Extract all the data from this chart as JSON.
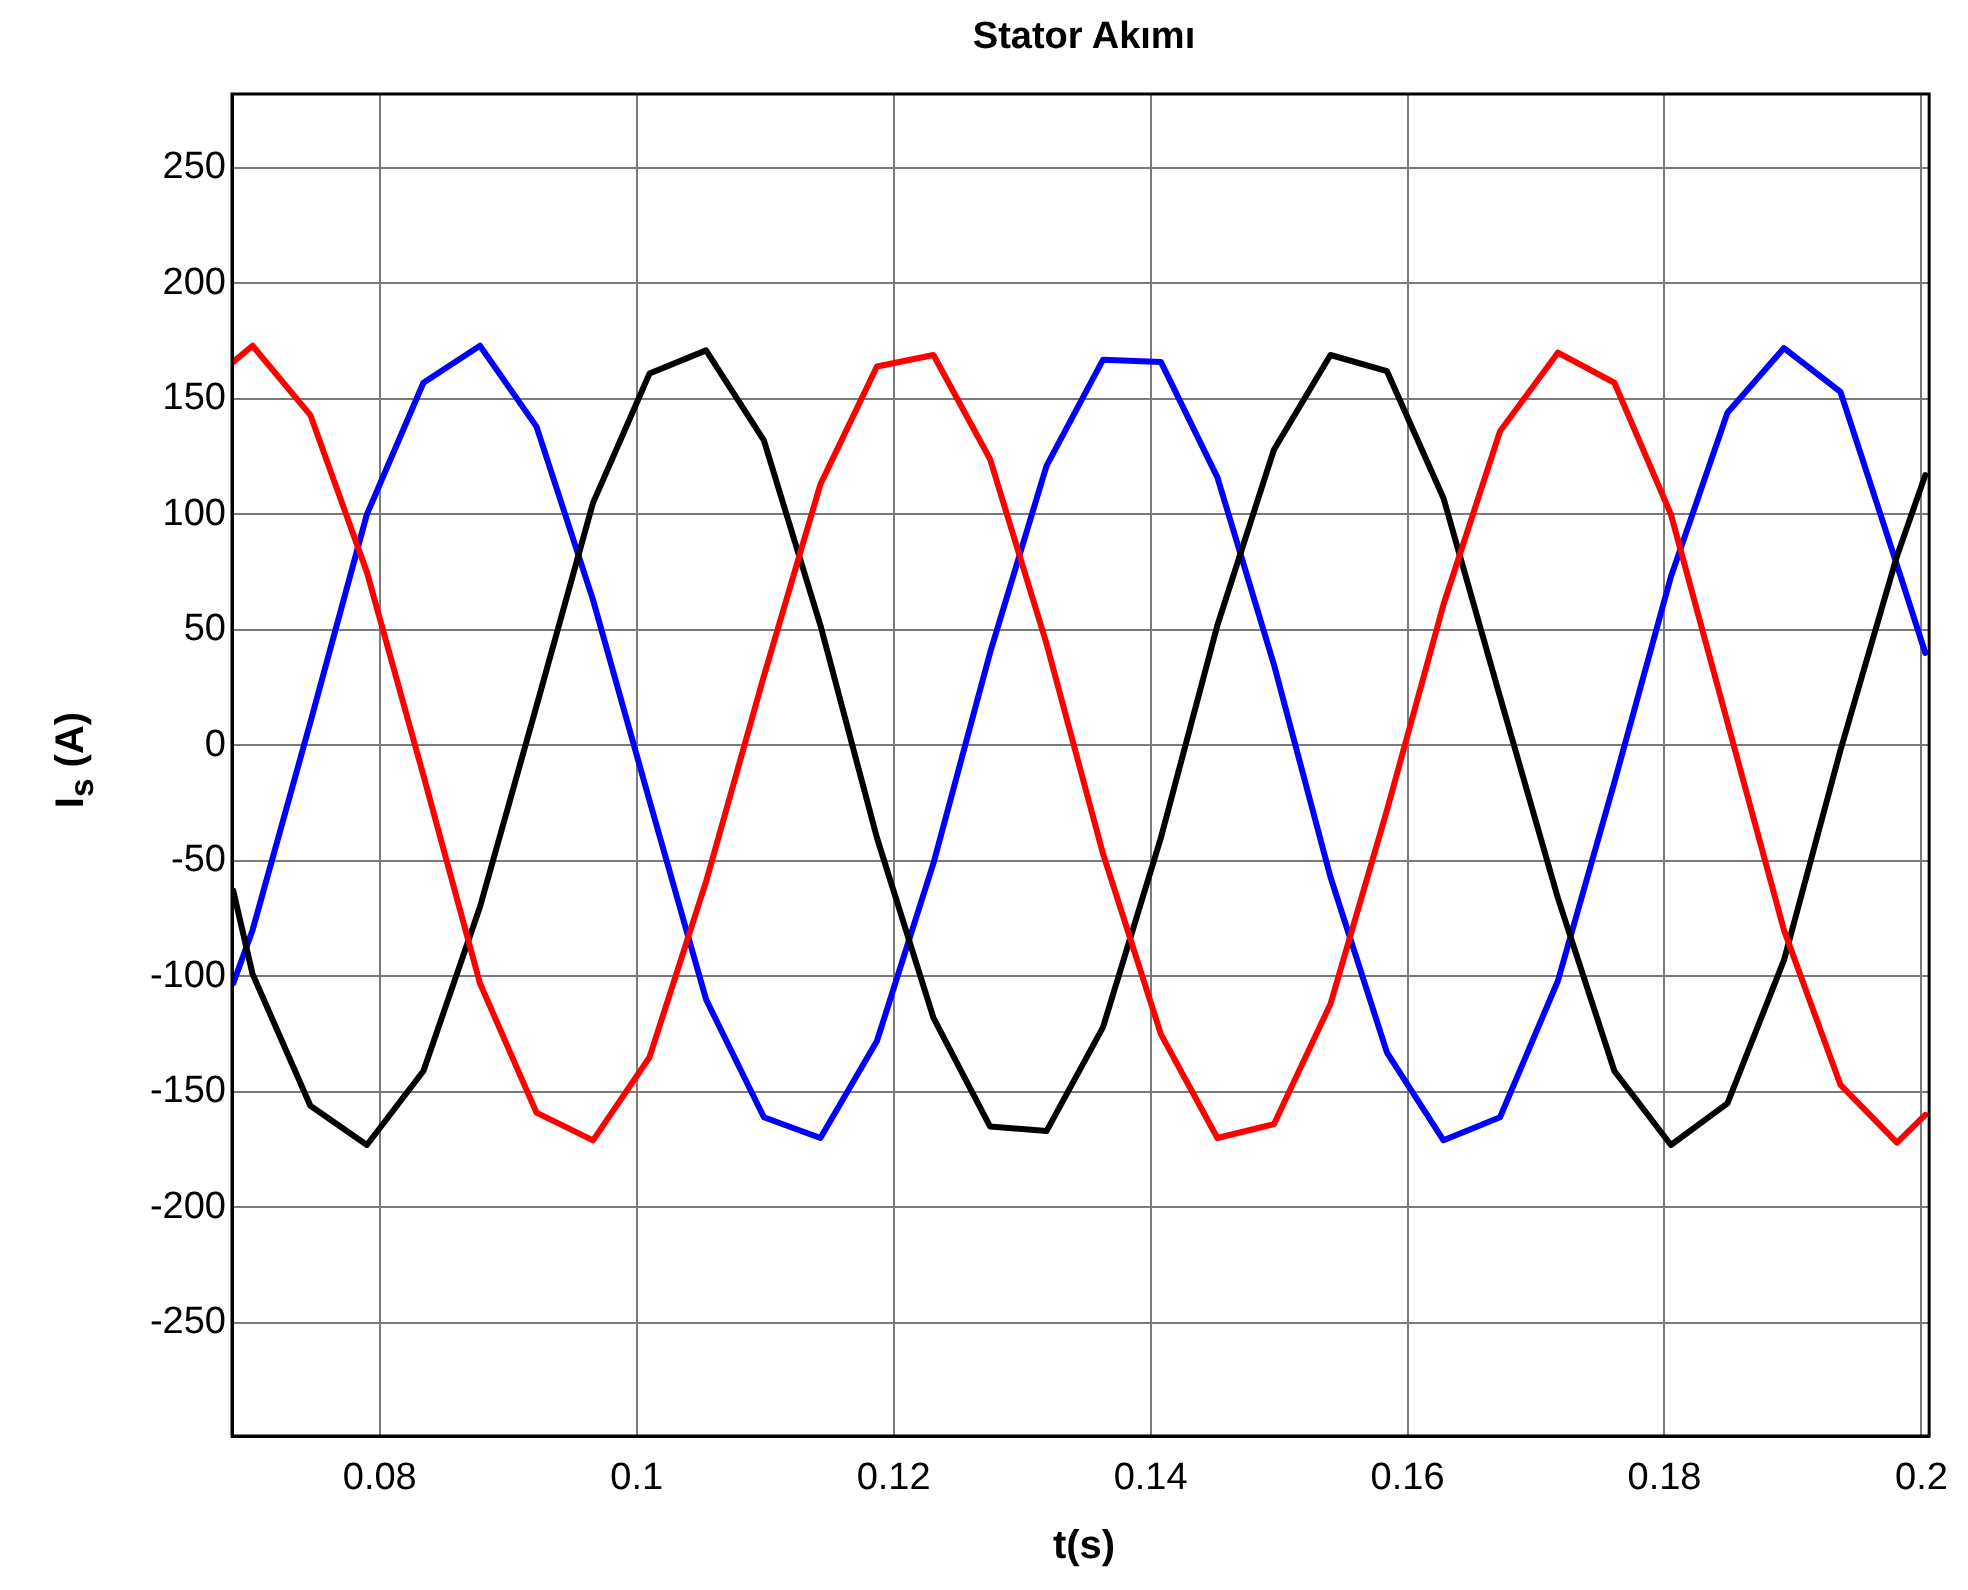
{
  "chart_data": {
    "type": "line",
    "title": "Stator Akımı",
    "xlabel": "t(s)",
    "ylabel": "I$_{s}$ (A)",
    "x": [
      0.0686,
      0.0701,
      0.0746,
      0.079,
      0.0834,
      0.0878,
      0.0922,
      0.0966,
      0.101,
      0.1054,
      0.1099,
      0.1143,
      0.1187,
      0.1231,
      0.1275,
      0.1319,
      0.1363,
      0.1408,
      0.1452,
      0.1496,
      0.154,
      0.1584,
      0.1628,
      0.1672,
      0.1717,
      0.1761,
      0.1805,
      0.1849,
      0.1893,
      0.1937,
      0.1981,
      0.2003
    ],
    "series": [
      {
        "color": "#ff0000",
        "values": [
          166,
          173,
          143,
          75,
          -13,
          -103,
          -159,
          -171,
          -135,
          -59,
          30,
          113,
          164,
          169,
          124,
          44,
          -47,
          -125,
          -170,
          -164,
          -112,
          -28,
          61,
          136,
          170,
          157,
          100,
          10,
          -80,
          -147,
          -172,
          -160
        ]
      },
      {
        "color": "#000000",
        "values": [
          -63,
          -99,
          -156,
          -173,
          -141,
          -70,
          17,
          105,
          161,
          171,
          132,
          52,
          -40,
          -118,
          -165,
          -167,
          -122,
          -40,
          52,
          128,
          169,
          162,
          107,
          21,
          -66,
          -141,
          -173,
          -155,
          -93,
          -2,
          82,
          117
        ]
      },
      {
        "color": "#0000ff",
        "values": [
          -103,
          -80,
          10,
          100,
          157,
          173,
          138,
          63,
          -24,
          -110,
          -161,
          -170,
          -128,
          -51,
          40,
          121,
          167,
          166,
          116,
          35,
          -57,
          -133,
          -171,
          -161,
          -102,
          -16,
          73,
          144,
          172,
          153,
          78,
          40
        ]
      }
    ],
    "xlim": [
      0.0685,
      0.2006
    ],
    "xticks": [
      0.08,
      0.1,
      0.12,
      0.14,
      0.16,
      0.18,
      0.2
    ],
    "ylim": [
      -299,
      282
    ],
    "yticks": [
      -250,
      -200,
      -150,
      -100,
      -50,
      0,
      50,
      100,
      150,
      200,
      250
    ],
    "grid": true,
    "legend": false,
    "marker": "none",
    "line_style": "solid"
  }
}
